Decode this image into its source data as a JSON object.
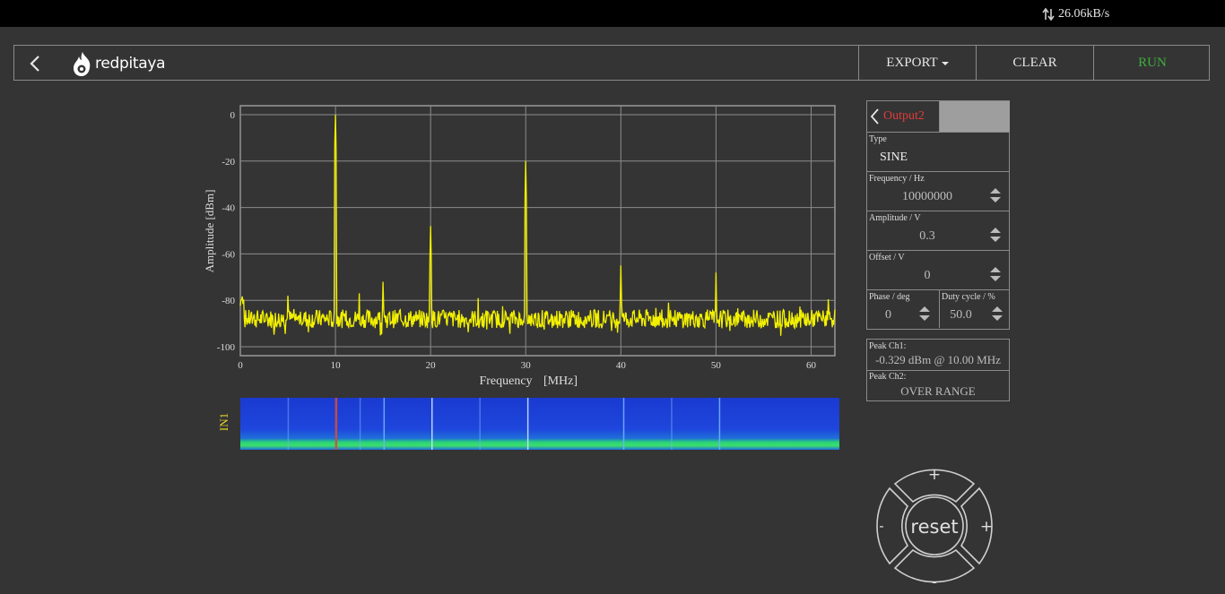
{
  "status": {
    "speed": "26.06kB/s",
    "icon": "updown-arrows-icon"
  },
  "header": {
    "logo_text": "redpitaya",
    "export_label": "EXPORT",
    "clear_label": "CLEAR",
    "run_label": "RUN",
    "run_color": "#3fae3f"
  },
  "chart": {
    "xlabel": "Frequency",
    "xunit": "[MHz]",
    "ylabel": "Amplitude  [dBm]",
    "xticks": [
      "0",
      "10",
      "20",
      "30",
      "40",
      "50",
      "60"
    ],
    "yticks": [
      "0",
      "-20",
      "-40",
      "-60",
      "-80",
      "-100"
    ],
    "trace_color": "#f2f000"
  },
  "chart_data": {
    "type": "line",
    "xlabel": "Frequency [MHz]",
    "ylabel": "Amplitude [dBm]",
    "xlim": [
      0,
      62.5
    ],
    "ylim": [
      -100,
      0
    ],
    "noise_floor": -88,
    "peaks": [
      {
        "x": 10,
        "y": 0
      },
      {
        "x": 20,
        "y": -48
      },
      {
        "x": 30,
        "y": -20
      },
      {
        "x": 40,
        "y": -65
      },
      {
        "x": 50,
        "y": -68
      },
      {
        "x": 15,
        "y": -72
      },
      {
        "x": 5,
        "y": -78
      },
      {
        "x": 12.5,
        "y": -77
      },
      {
        "x": 25,
        "y": -79
      },
      {
        "x": 45,
        "y": -81
      }
    ],
    "grid": true
  },
  "waterfall": {
    "channel_label": "IN1"
  },
  "generator": {
    "tab_label": "Output2",
    "tab_color": "#e03b3b",
    "type_label": "Type",
    "type_value": "SINE",
    "frequency_label": "Frequency   / Hz",
    "frequency_value": "10000000",
    "amplitude_label": "Amplitude  / V",
    "amplitude_value": "0.3",
    "offset_label": "Offset  / V",
    "offset_value": "0",
    "phase_label": "Phase   / deg",
    "phase_value": "0",
    "duty_label": "Duty cycle  / %",
    "duty_value": "50.0"
  },
  "peaks": {
    "ch1_label": "Peak  Ch1:",
    "ch1_value": "-0.329  dBm @ 10.00  MHz",
    "ch2_label": "Peak  Ch2:",
    "ch2_value": "OVER RANGE"
  },
  "jog": {
    "reset_label": "reset",
    "plus_label": "+",
    "minus_label": "-"
  }
}
